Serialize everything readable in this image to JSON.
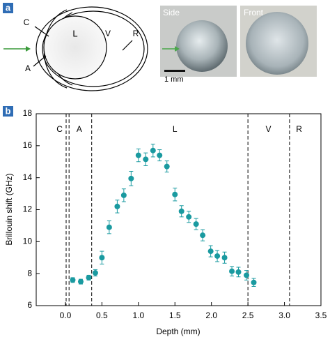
{
  "panel_a": {
    "label": "a",
    "diagram": {
      "labels": [
        "C",
        "A",
        "L",
        "V",
        "R"
      ]
    },
    "photos": {
      "side": "Side",
      "front": "Front",
      "scale": "1 mm"
    }
  },
  "chart_data": {
    "type": "scatter",
    "panel_label": "b",
    "xlabel": "Depth (mm)",
    "ylabel": "Brillouin shift (GHz)",
    "x": [
      0.1,
      0.21,
      0.32,
      0.41,
      0.5,
      0.6,
      0.71,
      0.8,
      0.9,
      1.0,
      1.1,
      1.2,
      1.29,
      1.39,
      1.5,
      1.59,
      1.69,
      1.79,
      1.88,
      1.99,
      2.08,
      2.18,
      2.28,
      2.37,
      2.48,
      2.58
    ],
    "values": [
      7.6,
      7.5,
      7.75,
      8.05,
      9.0,
      10.9,
      12.2,
      12.9,
      13.95,
      15.4,
      15.15,
      15.7,
      15.4,
      14.7,
      12.95,
      11.9,
      11.55,
      11.1,
      10.4,
      9.4,
      9.1,
      9.0,
      8.15,
      8.1,
      7.9,
      7.45
    ],
    "errors": [
      0.15,
      0.15,
      0.15,
      0.2,
      0.4,
      0.4,
      0.4,
      0.4,
      0.45,
      0.4,
      0.4,
      0.4,
      0.35,
      0.35,
      0.4,
      0.35,
      0.35,
      0.35,
      0.35,
      0.35,
      0.35,
      0.35,
      0.3,
      0.3,
      0.3,
      0.25
    ],
    "color": "#1a9aa0",
    "boundaries": [
      0.01,
      0.05,
      0.36,
      2.5,
      3.07
    ],
    "regions": [
      {
        "label": "C",
        "x": -0.08
      },
      {
        "label": "A",
        "x": 0.19
      },
      {
        "label": "L",
        "x": 1.5
      },
      {
        "label": "V",
        "x": 2.78
      },
      {
        "label": "R",
        "x": 3.2
      }
    ],
    "region_label_y": 17,
    "xlim": [
      -0.4,
      3.5
    ],
    "ylim": [
      6,
      18
    ],
    "xticks": [
      {
        "value": 0,
        "label": "0.0"
      },
      0.5,
      {
        "value": 1,
        "label": "1.0"
      },
      1.5,
      {
        "value": 2,
        "label": "2.0"
      },
      2.5,
      {
        "value": 3,
        "label": "3.0"
      },
      3.5
    ],
    "yticks": [
      6,
      8,
      10,
      12,
      14,
      16,
      18
    ]
  }
}
